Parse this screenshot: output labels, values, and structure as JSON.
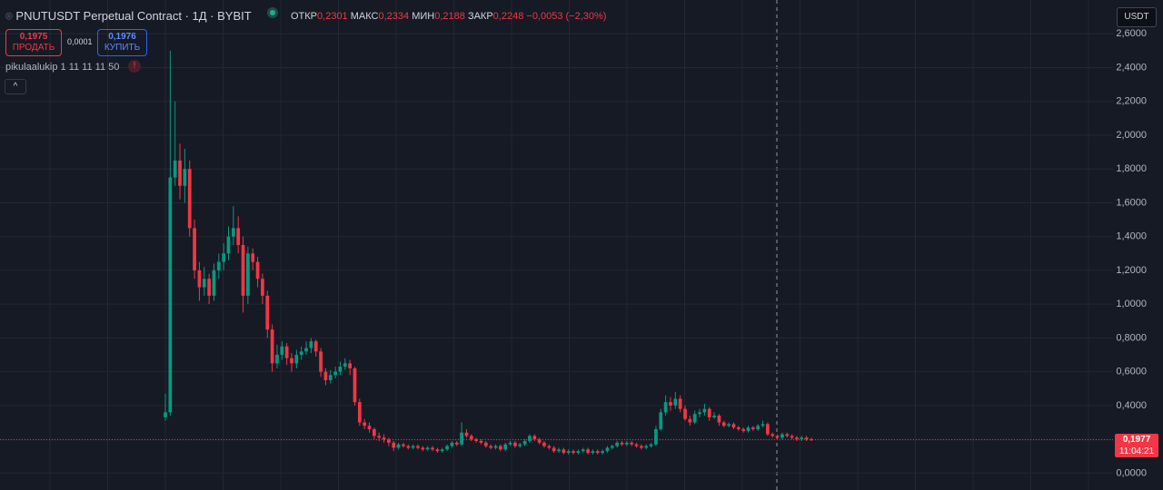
{
  "header": {
    "symbol": "PNUTUSDT Perpetual Contract · 1Д · BYBIT",
    "open_label": "ОТКР",
    "open": "0,2301",
    "high_label": "МАКС",
    "high": "0,2334",
    "low_label": "МИН",
    "low": "0,2188",
    "close_label": "ЗАКР",
    "close": "0,2248",
    "change": "−0,0053 (−2,30%)",
    "sell_price": "0,1975",
    "sell_label": "ПРОДАТЬ",
    "spread": "0,0001",
    "buy_price": "0,1976",
    "buy_label": "КУПИТЬ",
    "indicator": "pikulaalukip 1 11 11 11 50",
    "warning": "!",
    "currency": "USDT",
    "countdown": "11:04:21"
  },
  "chart_data": {
    "type": "candlestick",
    "up_color": "#089981",
    "down_color": "#f23645",
    "grid": true,
    "ylim": [
      -0.1,
      2.8
    ],
    "yticks": [
      {
        "value": 0,
        "label": "0,0000"
      },
      {
        "value": 0.2,
        "label": "0,2000"
      },
      {
        "value": 0.4,
        "label": "0,4000"
      },
      {
        "value": 0.6,
        "label": "0,6000"
      },
      {
        "value": 0.8,
        "label": "0,8000"
      },
      {
        "value": 1.0,
        "label": "1,0000"
      },
      {
        "value": 1.2,
        "label": "1,2000"
      },
      {
        "value": 1.4,
        "label": "1,4000"
      },
      {
        "value": 1.6,
        "label": "1,6000"
      },
      {
        "value": 1.8,
        "label": "1,8000"
      },
      {
        "value": 2.0,
        "label": "2,0000"
      },
      {
        "value": 2.2,
        "label": "2,2000"
      },
      {
        "value": 2.4,
        "label": "2,4000"
      },
      {
        "value": 2.6,
        "label": "2,6000"
      }
    ],
    "last_price": {
      "value": 0.1977,
      "label": "0,1977"
    },
    "ohlc": [
      [
        0.33,
        0.47,
        0.31,
        0.36
      ],
      [
        0.36,
        2.5,
        0.34,
        1.75
      ],
      [
        1.75,
        2.2,
        1.7,
        1.85
      ],
      [
        1.85,
        1.95,
        1.62,
        1.7
      ],
      [
        1.7,
        1.92,
        1.6,
        1.8
      ],
      [
        1.8,
        1.85,
        1.4,
        1.45
      ],
      [
        1.45,
        1.5,
        1.15,
        1.2
      ],
      [
        1.2,
        1.25,
        1.02,
        1.1
      ],
      [
        1.1,
        1.22,
        1.05,
        1.15
      ],
      [
        1.15,
        1.18,
        1.0,
        1.05
      ],
      [
        1.05,
        1.24,
        1.02,
        1.2
      ],
      [
        1.2,
        1.3,
        1.15,
        1.25
      ],
      [
        1.25,
        1.36,
        1.2,
        1.3
      ],
      [
        1.3,
        1.46,
        1.26,
        1.4
      ],
      [
        1.4,
        1.58,
        1.35,
        1.45
      ],
      [
        1.45,
        1.52,
        1.3,
        1.35
      ],
      [
        1.35,
        1.4,
        0.95,
        1.05
      ],
      [
        1.05,
        1.34,
        1.0,
        1.3
      ],
      [
        1.3,
        1.33,
        1.2,
        1.25
      ],
      [
        1.25,
        1.28,
        1.1,
        1.15
      ],
      [
        1.15,
        1.18,
        1.0,
        1.05
      ],
      [
        1.05,
        1.08,
        0.8,
        0.85
      ],
      [
        0.85,
        0.88,
        0.6,
        0.65
      ],
      [
        0.65,
        0.76,
        0.62,
        0.7
      ],
      [
        0.7,
        0.78,
        0.67,
        0.75
      ],
      [
        0.75,
        0.77,
        0.64,
        0.68
      ],
      [
        0.68,
        0.71,
        0.6,
        0.65
      ],
      [
        0.65,
        0.73,
        0.62,
        0.7
      ],
      [
        0.7,
        0.75,
        0.67,
        0.72
      ],
      [
        0.72,
        0.78,
        0.7,
        0.74
      ],
      [
        0.74,
        0.8,
        0.71,
        0.78
      ],
      [
        0.78,
        0.79,
        0.69,
        0.72
      ],
      [
        0.72,
        0.74,
        0.57,
        0.6
      ],
      [
        0.6,
        0.62,
        0.52,
        0.55
      ],
      [
        0.55,
        0.61,
        0.53,
        0.58
      ],
      [
        0.58,
        0.63,
        0.56,
        0.6
      ],
      [
        0.6,
        0.66,
        0.58,
        0.63
      ],
      [
        0.63,
        0.68,
        0.61,
        0.65
      ],
      [
        0.65,
        0.67,
        0.58,
        0.62
      ],
      [
        0.62,
        0.63,
        0.4,
        0.42
      ],
      [
        0.42,
        0.44,
        0.28,
        0.3
      ],
      [
        0.3,
        0.32,
        0.26,
        0.28
      ],
      [
        0.28,
        0.3,
        0.24,
        0.26
      ],
      [
        0.26,
        0.27,
        0.2,
        0.22
      ],
      [
        0.22,
        0.24,
        0.19,
        0.21
      ],
      [
        0.21,
        0.23,
        0.18,
        0.2
      ],
      [
        0.2,
        0.21,
        0.16,
        0.18
      ],
      [
        0.18,
        0.19,
        0.13,
        0.15
      ],
      [
        0.15,
        0.18,
        0.14,
        0.17
      ],
      [
        0.17,
        0.18,
        0.15,
        0.16
      ],
      [
        0.16,
        0.17,
        0.14,
        0.15
      ],
      [
        0.15,
        0.17,
        0.14,
        0.16
      ],
      [
        0.16,
        0.17,
        0.14,
        0.15
      ],
      [
        0.15,
        0.16,
        0.13,
        0.14
      ],
      [
        0.14,
        0.16,
        0.13,
        0.15
      ],
      [
        0.15,
        0.16,
        0.13,
        0.14
      ],
      [
        0.14,
        0.15,
        0.12,
        0.13
      ],
      [
        0.13,
        0.15,
        0.12,
        0.14
      ],
      [
        0.14,
        0.17,
        0.13,
        0.16
      ],
      [
        0.16,
        0.19,
        0.15,
        0.18
      ],
      [
        0.18,
        0.19,
        0.16,
        0.17
      ],
      [
        0.17,
        0.3,
        0.16,
        0.24
      ],
      [
        0.24,
        0.26,
        0.21,
        0.22
      ],
      [
        0.22,
        0.23,
        0.19,
        0.2
      ],
      [
        0.2,
        0.21,
        0.18,
        0.19
      ],
      [
        0.19,
        0.2,
        0.17,
        0.18
      ],
      [
        0.18,
        0.19,
        0.15,
        0.16
      ],
      [
        0.16,
        0.17,
        0.14,
        0.15
      ],
      [
        0.15,
        0.17,
        0.14,
        0.16
      ],
      [
        0.16,
        0.17,
        0.13,
        0.14
      ],
      [
        0.14,
        0.18,
        0.13,
        0.17
      ],
      [
        0.17,
        0.19,
        0.16,
        0.18
      ],
      [
        0.18,
        0.19,
        0.15,
        0.16
      ],
      [
        0.16,
        0.18,
        0.15,
        0.17
      ],
      [
        0.17,
        0.2,
        0.16,
        0.19
      ],
      [
        0.19,
        0.23,
        0.18,
        0.22
      ],
      [
        0.22,
        0.23,
        0.19,
        0.2
      ],
      [
        0.2,
        0.21,
        0.17,
        0.18
      ],
      [
        0.18,
        0.19,
        0.15,
        0.16
      ],
      [
        0.16,
        0.17,
        0.14,
        0.15
      ],
      [
        0.15,
        0.16,
        0.12,
        0.13
      ],
      [
        0.13,
        0.15,
        0.12,
        0.14
      ],
      [
        0.14,
        0.15,
        0.11,
        0.12
      ],
      [
        0.12,
        0.14,
        0.11,
        0.13
      ],
      [
        0.13,
        0.14,
        0.11,
        0.12
      ],
      [
        0.12,
        0.14,
        0.11,
        0.13
      ],
      [
        0.13,
        0.15,
        0.12,
        0.14
      ],
      [
        0.14,
        0.15,
        0.11,
        0.12
      ],
      [
        0.12,
        0.14,
        0.11,
        0.13
      ],
      [
        0.13,
        0.14,
        0.11,
        0.12
      ],
      [
        0.12,
        0.14,
        0.11,
        0.13
      ],
      [
        0.13,
        0.16,
        0.12,
        0.15
      ],
      [
        0.15,
        0.17,
        0.14,
        0.16
      ],
      [
        0.16,
        0.19,
        0.15,
        0.18
      ],
      [
        0.18,
        0.19,
        0.16,
        0.17
      ],
      [
        0.17,
        0.19,
        0.16,
        0.18
      ],
      [
        0.18,
        0.19,
        0.16,
        0.17
      ],
      [
        0.17,
        0.18,
        0.15,
        0.16
      ],
      [
        0.16,
        0.17,
        0.14,
        0.15
      ],
      [
        0.15,
        0.17,
        0.14,
        0.16
      ],
      [
        0.16,
        0.18,
        0.15,
        0.17
      ],
      [
        0.17,
        0.28,
        0.16,
        0.26
      ],
      [
        0.26,
        0.38,
        0.25,
        0.36
      ],
      [
        0.36,
        0.46,
        0.34,
        0.42
      ],
      [
        0.42,
        0.45,
        0.37,
        0.4
      ],
      [
        0.4,
        0.48,
        0.38,
        0.44
      ],
      [
        0.44,
        0.46,
        0.36,
        0.38
      ],
      [
        0.38,
        0.4,
        0.31,
        0.32
      ],
      [
        0.32,
        0.34,
        0.28,
        0.3
      ],
      [
        0.3,
        0.37,
        0.29,
        0.35
      ],
      [
        0.35,
        0.38,
        0.33,
        0.36
      ],
      [
        0.36,
        0.41,
        0.34,
        0.38
      ],
      [
        0.38,
        0.39,
        0.31,
        0.33
      ],
      [
        0.33,
        0.36,
        0.32,
        0.34
      ],
      [
        0.34,
        0.35,
        0.28,
        0.3
      ],
      [
        0.3,
        0.31,
        0.27,
        0.28
      ],
      [
        0.28,
        0.3,
        0.27,
        0.29
      ],
      [
        0.29,
        0.3,
        0.26,
        0.27
      ],
      [
        0.27,
        0.28,
        0.25,
        0.26
      ],
      [
        0.26,
        0.27,
        0.24,
        0.25
      ],
      [
        0.25,
        0.28,
        0.24,
        0.27
      ],
      [
        0.27,
        0.28,
        0.25,
        0.26
      ],
      [
        0.26,
        0.29,
        0.25,
        0.28
      ],
      [
        0.28,
        0.31,
        0.27,
        0.29
      ],
      [
        0.29,
        0.3,
        0.22,
        0.23
      ],
      [
        0.23,
        0.24,
        0.21,
        0.22
      ],
      [
        0.22,
        0.23,
        0.2,
        0.21
      ],
      [
        0.21,
        0.24,
        0.2,
        0.23
      ],
      [
        0.23,
        0.24,
        0.21,
        0.22
      ],
      [
        0.22,
        0.23,
        0.2,
        0.21
      ],
      [
        0.21,
        0.22,
        0.19,
        0.2
      ],
      [
        0.2,
        0.22,
        0.19,
        0.21
      ],
      [
        0.21,
        0.22,
        0.19,
        0.2
      ],
      [
        0.2,
        0.21,
        0.19,
        0.1977
      ]
    ]
  }
}
